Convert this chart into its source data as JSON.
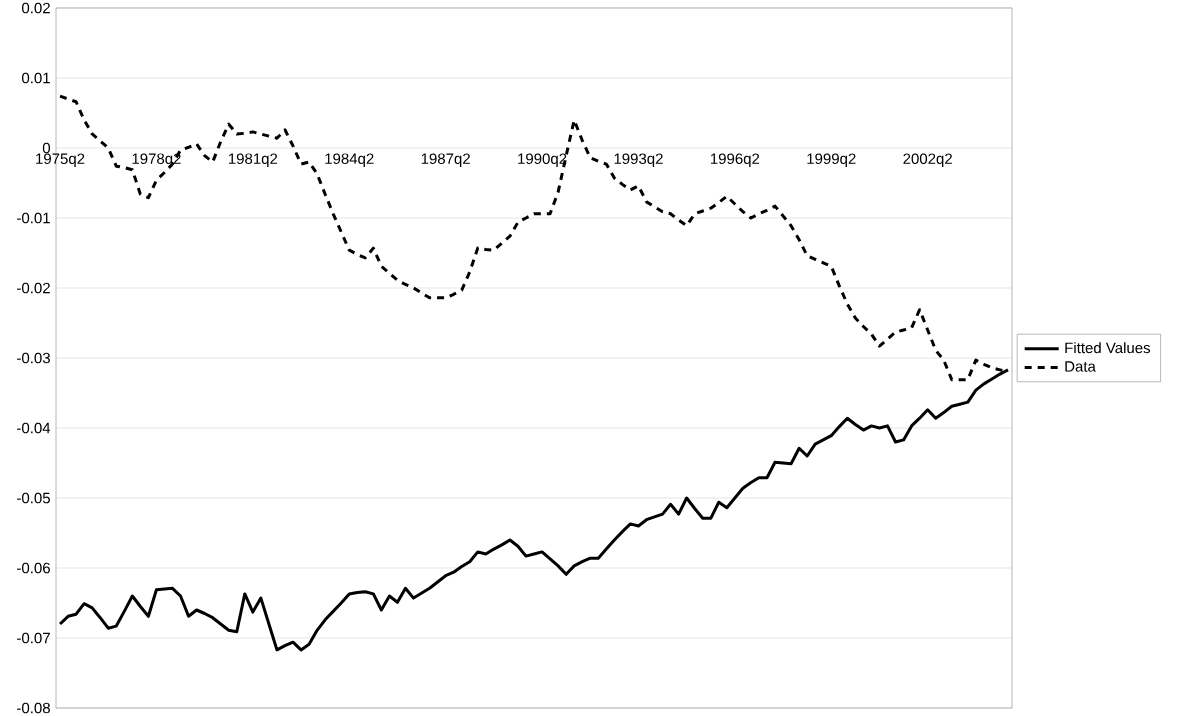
{
  "chart_data": {
    "type": "line",
    "categories": [
      "1975q2",
      null,
      null,
      null,
      null,
      null,
      null,
      null,
      null,
      null,
      null,
      null,
      "1978q2",
      null,
      null,
      null,
      null,
      null,
      null,
      null,
      null,
      null,
      null,
      null,
      "1981q2",
      null,
      null,
      null,
      null,
      null,
      null,
      null,
      null,
      null,
      null,
      null,
      "1984q2",
      null,
      null,
      null,
      null,
      null,
      null,
      null,
      null,
      null,
      null,
      null,
      "1987q2",
      null,
      null,
      null,
      null,
      null,
      null,
      null,
      null,
      null,
      null,
      null,
      "1990q2",
      null,
      null,
      null,
      null,
      null,
      null,
      null,
      null,
      null,
      null,
      null,
      "1993q2",
      null,
      null,
      null,
      null,
      null,
      null,
      null,
      null,
      null,
      null,
      null,
      "1996q2",
      null,
      null,
      null,
      null,
      null,
      null,
      null,
      null,
      null,
      null,
      null,
      "1999q2",
      null,
      null,
      null,
      null,
      null,
      null,
      null,
      null,
      null,
      null,
      null,
      "2002q2",
      null,
      null,
      null,
      null,
      null,
      null,
      null,
      null,
      null,
      null
    ],
    "ylim": [
      -0.08,
      0.02
    ],
    "yticks": [
      -0.08,
      -0.07,
      -0.06,
      -0.05,
      -0.04,
      -0.03,
      -0.02,
      -0.01,
      0,
      0.01,
      0.02
    ],
    "grid": "y",
    "legend": "right",
    "series": [
      {
        "name": "Fitted Values",
        "color": "#000000",
        "line_style": "solid",
        "values": [
          -0.068,
          -0.0669,
          -0.0666,
          -0.0651,
          -0.0657,
          -0.0671,
          -0.0686,
          -0.0683,
          -0.0662,
          -0.064,
          -0.0655,
          -0.0669,
          -0.0631,
          -0.063,
          -0.0629,
          -0.064,
          -0.0669,
          -0.066,
          -0.0665,
          -0.0671,
          -0.068,
          -0.0689,
          -0.0691,
          -0.0637,
          -0.0663,
          -0.0643,
          -0.068,
          -0.0717,
          -0.0711,
          -0.0706,
          -0.0717,
          -0.0709,
          -0.0689,
          -0.0674,
          -0.0662,
          -0.065,
          -0.0637,
          -0.0635,
          -0.0634,
          -0.0637,
          -0.066,
          -0.064,
          -0.0649,
          -0.0629,
          -0.0643,
          -0.0636,
          -0.0629,
          -0.062,
          -0.0611,
          -0.0606,
          -0.0598,
          -0.0591,
          -0.0577,
          -0.058,
          -0.0573,
          -0.0567,
          -0.056,
          -0.0569,
          -0.0583,
          -0.058,
          -0.0577,
          -0.0587,
          -0.0597,
          -0.0609,
          -0.0597,
          -0.0591,
          -0.0586,
          -0.0586,
          -0.0573,
          -0.056,
          -0.0548,
          -0.0537,
          -0.054,
          -0.0531,
          -0.0527,
          -0.0523,
          -0.0509,
          -0.0523,
          -0.05,
          -0.0515,
          -0.0529,
          -0.0529,
          -0.0506,
          -0.0514,
          -0.05,
          -0.0486,
          -0.0478,
          -0.0471,
          -0.0471,
          -0.0449,
          -0.045,
          -0.0451,
          -0.0429,
          -0.044,
          -0.0423,
          -0.0417,
          -0.0411,
          -0.0398,
          -0.0386,
          -0.0395,
          -0.0403,
          -0.0397,
          -0.04,
          -0.0397,
          -0.042,
          -0.0417,
          -0.0397,
          -0.0386,
          -0.0374,
          -0.0386,
          -0.0378,
          -0.0369,
          -0.0366,
          -0.0363,
          -0.0346,
          -0.0337,
          -0.033,
          -0.0323,
          -0.0317
        ]
      },
      {
        "name": "Data",
        "color": "#000000",
        "line_style": "dashed",
        "values": [
          0.0074,
          0.007,
          0.0066,
          0.004,
          0.002,
          0.001,
          0.0,
          -0.0026,
          -0.0028,
          -0.0031,
          -0.0066,
          -0.0071,
          -0.0046,
          -0.0035,
          -0.0023,
          -0.0003,
          0.0001,
          0.0006,
          -0.0011,
          -0.002,
          0.0009,
          0.0034,
          0.002,
          0.0021,
          0.0023,
          0.002,
          0.0017,
          0.0014,
          0.0026,
          0.0003,
          -0.0023,
          -0.002,
          -0.0037,
          -0.0066,
          -0.0094,
          -0.012,
          -0.0146,
          -0.0152,
          -0.0157,
          -0.0143,
          -0.0169,
          -0.0179,
          -0.0189,
          -0.0195,
          -0.02,
          -0.0207,
          -0.0214,
          -0.0214,
          -0.0214,
          -0.0209,
          -0.0203,
          -0.0177,
          -0.0143,
          -0.0145,
          -0.0146,
          -0.0136,
          -0.0126,
          -0.0106,
          -0.01,
          -0.0094,
          -0.0094,
          -0.0094,
          -0.0063,
          -0.0011,
          0.004,
          0.0011,
          -0.0014,
          -0.0019,
          -0.0023,
          -0.0043,
          -0.0052,
          -0.006,
          -0.0054,
          -0.0077,
          -0.0084,
          -0.0091,
          -0.0094,
          -0.0103,
          -0.0111,
          -0.0094,
          -0.009,
          -0.0086,
          -0.0078,
          -0.0069,
          -0.008,
          -0.0091,
          -0.01,
          -0.0094,
          -0.0089,
          -0.0083,
          -0.0097,
          -0.0111,
          -0.0131,
          -0.0154,
          -0.0159,
          -0.0164,
          -0.0169,
          -0.0197,
          -0.0223,
          -0.0243,
          -0.0255,
          -0.0266,
          -0.0283,
          -0.0273,
          -0.0263,
          -0.026,
          -0.0257,
          -0.0231,
          -0.026,
          -0.0289,
          -0.0303,
          -0.0331,
          -0.0331,
          -0.0331,
          -0.0303,
          -0.0309,
          -0.0314,
          -0.0317,
          -0.032
        ]
      }
    ]
  }
}
